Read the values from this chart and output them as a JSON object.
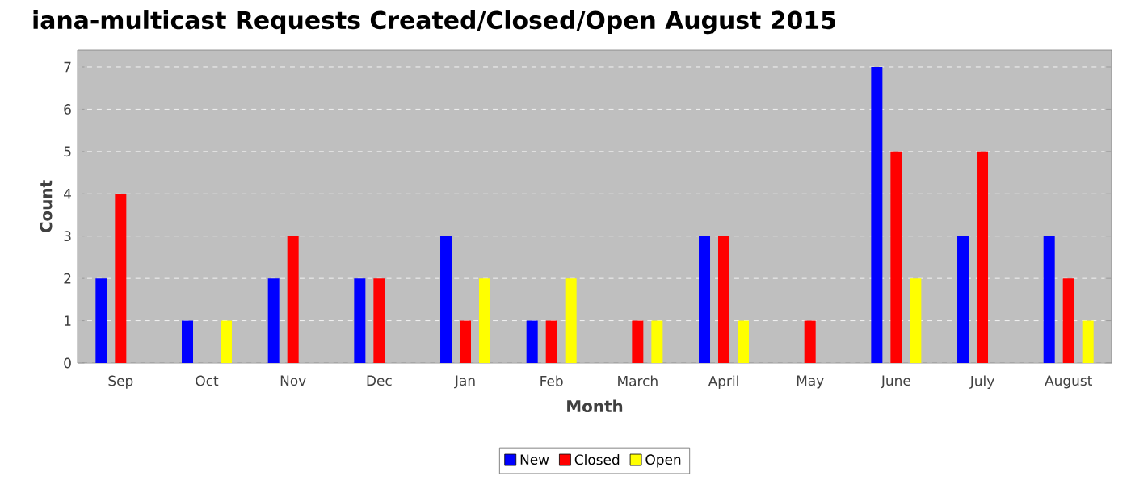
{
  "chart_data": {
    "type": "bar",
    "title": "iana-multicast Requests Created/Closed/Open August 2015",
    "xlabel": "Month",
    "ylabel": "Count",
    "categories": [
      "Sep",
      "Oct",
      "Nov",
      "Dec",
      "Jan",
      "Feb",
      "March",
      "April",
      "May",
      "June",
      "July",
      "August"
    ],
    "series": [
      {
        "name": "New",
        "color": "#0000ff",
        "values": [
          2,
          1,
          2,
          2,
          3,
          1,
          0,
          3,
          0,
          7,
          3,
          3
        ]
      },
      {
        "name": "Closed",
        "color": "#ff0000",
        "values": [
          4,
          0,
          3,
          2,
          1,
          1,
          1,
          3,
          1,
          5,
          5,
          2
        ]
      },
      {
        "name": "Open",
        "color": "#ffff00",
        "values": [
          0,
          1,
          0,
          0,
          2,
          2,
          1,
          1,
          0,
          2,
          0,
          1
        ]
      }
    ],
    "ylim": [
      0,
      7.4
    ],
    "yticks": [
      0,
      1,
      2,
      3,
      4,
      5,
      6,
      7
    ],
    "grid": "y",
    "legend": "bottom"
  }
}
